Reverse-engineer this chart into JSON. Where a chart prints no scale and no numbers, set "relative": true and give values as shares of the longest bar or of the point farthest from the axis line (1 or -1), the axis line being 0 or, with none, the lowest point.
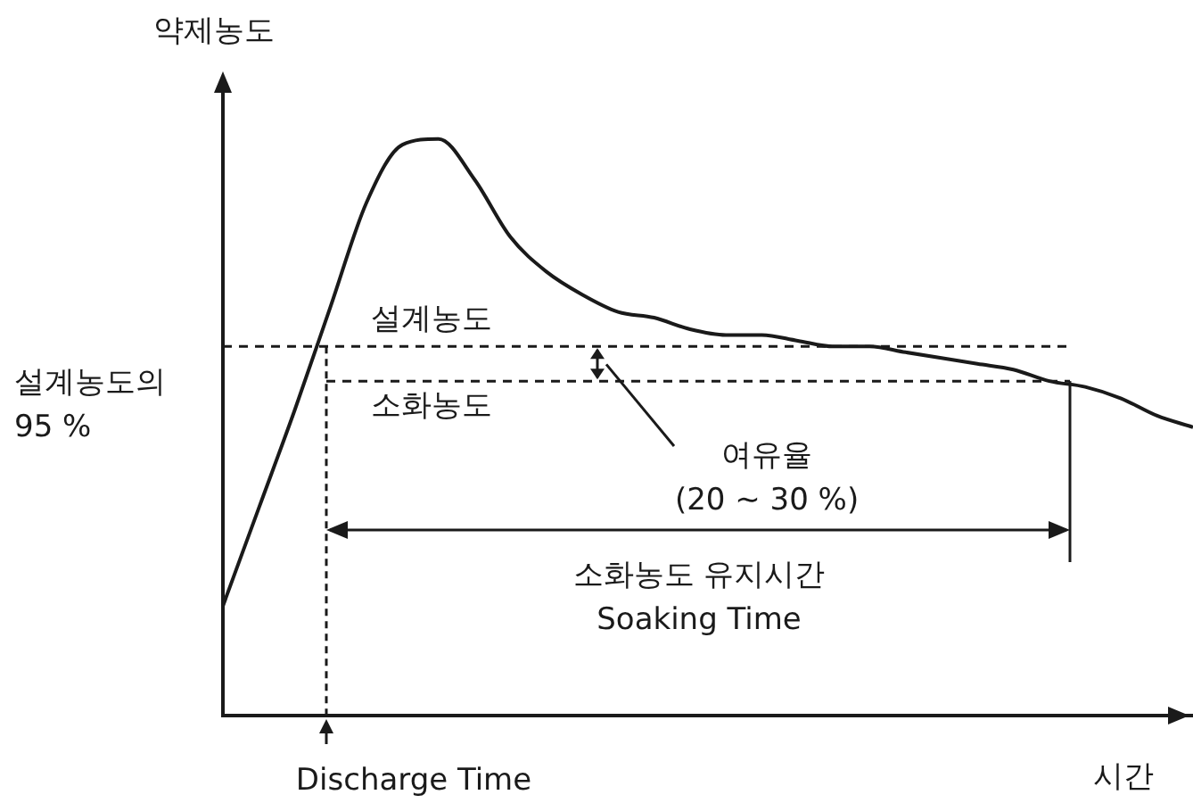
{
  "chart_data": {
    "type": "line",
    "relative": true,
    "ylabel": "약제농도",
    "xlabel": "시간",
    "marker": "none",
    "categories": [
      null,
      null,
      null,
      null,
      null,
      null,
      null,
      null,
      null,
      null,
      null,
      null,
      null,
      null,
      null,
      null,
      null,
      null,
      null,
      null,
      null,
      null,
      null,
      null,
      null,
      null,
      null,
      null
    ],
    "series": [
      {
        "color": "#1a1a1a",
        "values": [
          0.19,
          0.36,
          0.53,
          0.71,
          0.89,
          0.99,
          1,
          0.93,
          0.83,
          0.77,
          0.73,
          0.7,
          0.69,
          0.67,
          0.66,
          0.66,
          0.65,
          0.64,
          0.64,
          0.63,
          0.62,
          0.61,
          0.6,
          0.58,
          0.57,
          0.55,
          0.52,
          0.5
        ]
      }
    ],
    "ref_lines": [
      {
        "axis": "y",
        "value": 0.64,
        "label": "설계농도",
        "color": "#1a1a1a",
        "line_style": "dashed"
      },
      {
        "axis": "y",
        "value": 0.58,
        "label": "소화농도",
        "color": "#1a1a1a",
        "line_style": "dashed"
      }
    ],
    "annotations": [
      "설계농도의\n95 %",
      "여유율\n(20 ~ 30 %)",
      "소화농도 유지시간\nSoaking Time",
      "Discharge Time"
    ]
  }
}
